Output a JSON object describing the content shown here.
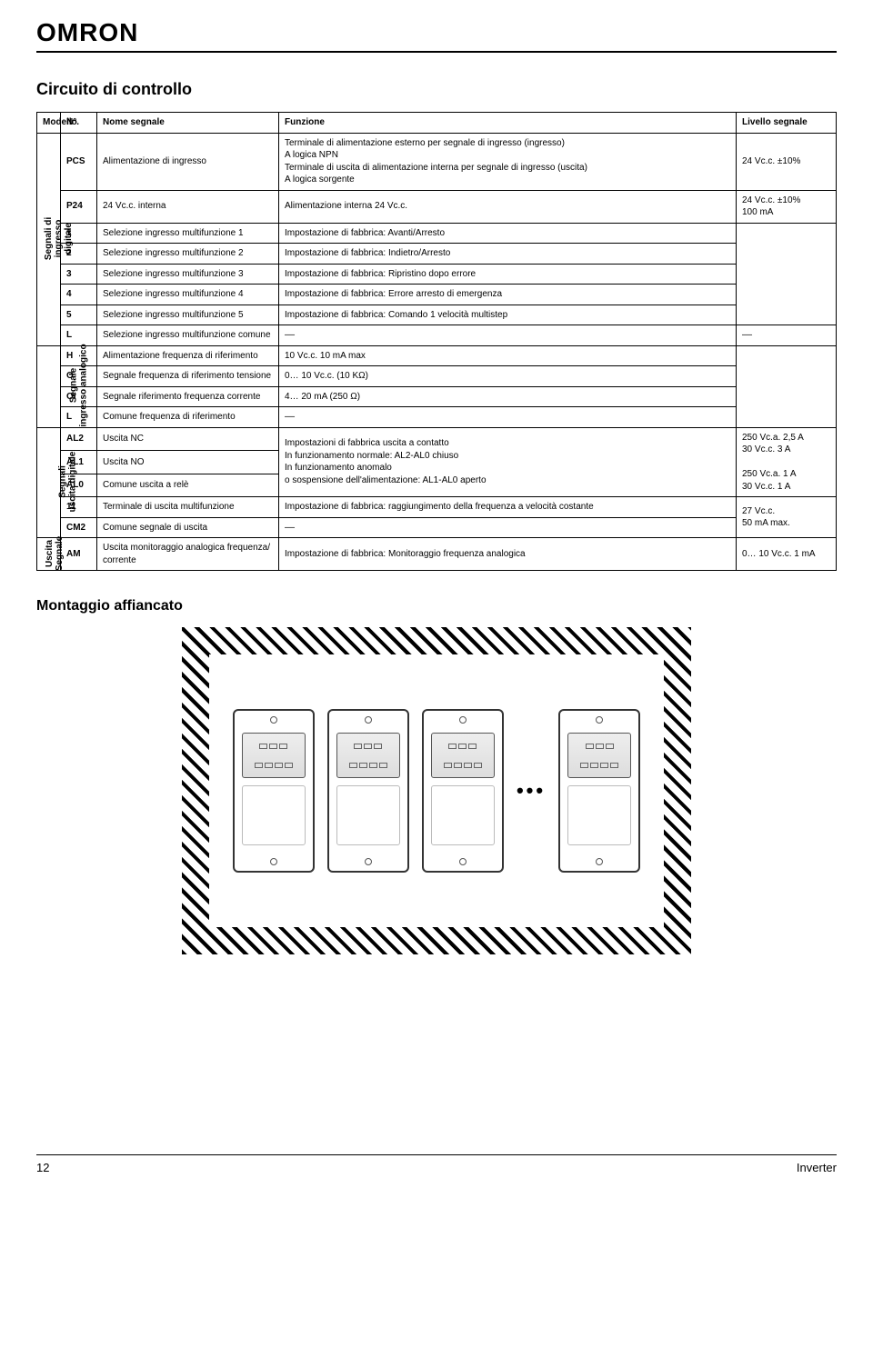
{
  "brand": "OMRON",
  "title": "Circuito di controllo",
  "headers": {
    "model": "Modello",
    "n": "N°.",
    "signal_name": "Nome segnale",
    "function": "Funzione",
    "level": "Livello segnale"
  },
  "groups": [
    {
      "label": "Segnali di\ningresso\ndigitale",
      "rows": [
        {
          "n": "PCS",
          "name": "Alimentazione di ingresso",
          "func": "Terminale di alimentazione esterno per segnale di ingresso (ingresso)\nA logica NPN\nTerminale di uscita di alimentazione interna per segnale di ingresso (uscita)\nA logica sorgente",
          "level": "24 Vc.c. ±10%"
        },
        {
          "n": "P24",
          "name": "24 Vc.c. interna",
          "func": "Alimentazione interna 24 Vc.c.",
          "level": "24 Vc.c. ±10%\n100 mA"
        },
        {
          "n": "1",
          "name": "Selezione ingresso multifunzione 1",
          "func": "Impostazione di fabbrica: Avanti/Arresto"
        },
        {
          "n": "2",
          "name": "Selezione ingresso multifunzione 2",
          "func": "Impostazione di fabbrica: Indietro/Arresto"
        },
        {
          "n": "3",
          "name": "Selezione ingresso multifunzione 3",
          "func": "Impostazione di fabbrica: Ripristino dopo errore"
        },
        {
          "n": "4",
          "name": "Selezione ingresso multifunzione 4",
          "func": "Impostazione di fabbrica: Errore arresto di emergenza"
        },
        {
          "n": "5",
          "name": "Selezione ingresso multifunzione 5",
          "func": "Impostazione di fabbrica: Comando 1 velocità multistep"
        },
        {
          "n": "L",
          "name": "Selezione ingresso multifunzione comune",
          "func": "––",
          "level": "––"
        }
      ]
    },
    {
      "label": "Segnale\ningresso analogico",
      "rows": [
        {
          "n": "H",
          "name": "Alimentazione frequenza di riferimento",
          "func": "10 Vc.c. 10 mA max"
        },
        {
          "n": "O",
          "name": "Segnale frequenza di riferimento tensione",
          "func": "0… 10 Vc.c. (10 KΩ)"
        },
        {
          "n": "OI",
          "name": "Segnale riferimento frequenza corrente",
          "func": "4… 20 mA (250 Ω)"
        },
        {
          "n": "L",
          "name": "Comune frequenza di riferimento",
          "func": "––"
        }
      ],
      "group_level_rowspan": 4
    },
    {
      "label": "Segnali\nuscita digitale",
      "rows": [
        {
          "n": "AL2",
          "name": "Uscita NC",
          "func": "Impostazioni di fabbrica uscita a contatto\nIn funzionamento normale:                AL2-AL0 chiuso\nIn funzionamento anomalo\no sospensione dell'alimentazione:    AL1-AL0 aperto",
          "level": "250 Vc.a. 2,5 A\n30 Vc.c. 3 A\n\n250 Vc.a. 1 A\n30 Vc.c. 1 A",
          "func_rowspan": 3,
          "level_rowspan": 3
        },
        {
          "n": "AL1",
          "name": "Uscita NO"
        },
        {
          "n": "AL0",
          "name": "Comune uscita a relè"
        },
        {
          "n": "11",
          "name": "Terminale di uscita multifunzione",
          "func": "Impostazione di fabbrica: raggiungimento della frequenza a velocità costante",
          "level": "27 Vc.c.\n50 mA max.",
          "level_rowspan": 2
        },
        {
          "n": "CM2",
          "name": "Comune segnale di uscita",
          "func": "––"
        }
      ]
    },
    {
      "label": "Uscita\nSegnale",
      "rows": [
        {
          "n": "AM",
          "name": "Uscita monitoraggio analogica frequenza/\ncorrente",
          "func": "Impostazione di fabbrica: Monitoraggio frequenza analogica",
          "level": "0… 10 Vc.c. 1 mA"
        }
      ]
    }
  ],
  "illustration_title": "Montaggio affiancato",
  "footer": {
    "page": "12",
    "doc": "Inverter"
  }
}
